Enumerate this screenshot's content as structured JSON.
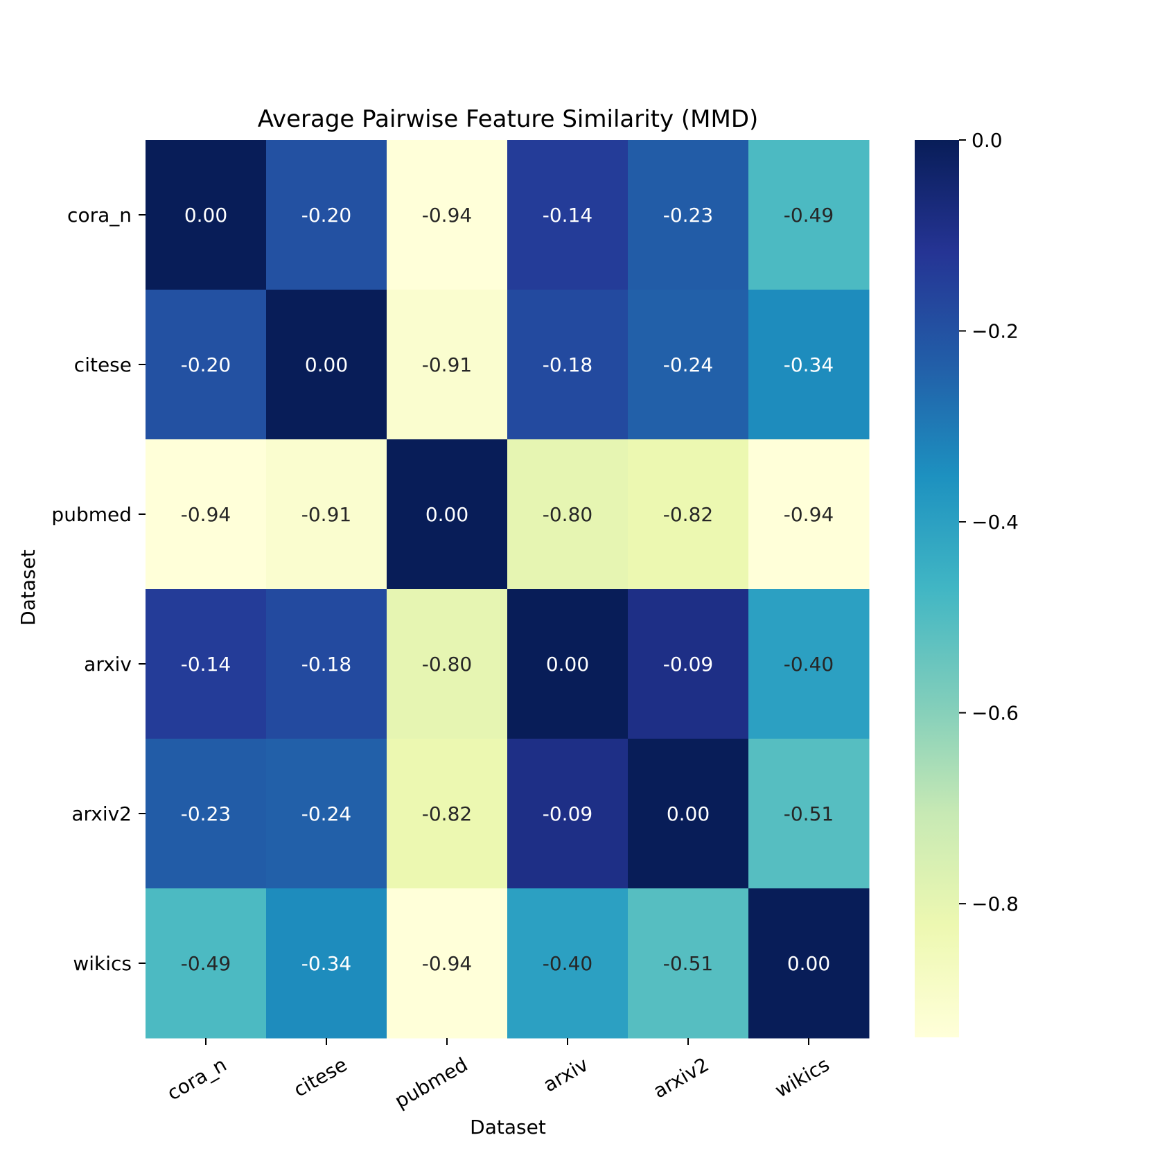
{
  "chart_data": {
    "type": "heatmap",
    "title": "Average Pairwise Feature Similarity (MMD)",
    "xlabel": "Dataset",
    "ylabel": "Dataset",
    "x_categories": [
      "cora_n",
      "citese",
      "pubmed",
      "arxiv",
      "arxiv2",
      "wikics"
    ],
    "y_categories": [
      "cora_n",
      "citese",
      "pubmed",
      "arxiv",
      "arxiv2",
      "wikics"
    ],
    "values": [
      [
        0.0,
        -0.2,
        -0.94,
        -0.14,
        -0.23,
        -0.49
      ],
      [
        -0.2,
        0.0,
        -0.91,
        -0.18,
        -0.24,
        -0.34
      ],
      [
        -0.94,
        -0.91,
        0.0,
        -0.8,
        -0.82,
        -0.94
      ],
      [
        -0.14,
        -0.18,
        -0.8,
        0.0,
        -0.09,
        -0.4
      ],
      [
        -0.23,
        -0.24,
        -0.82,
        -0.09,
        0.0,
        -0.51
      ],
      [
        -0.49,
        -0.34,
        -0.94,
        -0.4,
        -0.51,
        0.0
      ]
    ],
    "value_labels": [
      [
        "0.00",
        "-0.20",
        "-0.94",
        "-0.14",
        "-0.23",
        "-0.49"
      ],
      [
        "-0.20",
        "0.00",
        "-0.91",
        "-0.18",
        "-0.24",
        "-0.34"
      ],
      [
        "-0.94",
        "-0.91",
        "0.00",
        "-0.80",
        "-0.82",
        "-0.94"
      ],
      [
        "-0.14",
        "-0.18",
        "-0.80",
        "0.00",
        "-0.09",
        "-0.40"
      ],
      [
        "-0.23",
        "-0.24",
        "-0.82",
        "-0.09",
        "0.00",
        "-0.51"
      ],
      [
        "-0.49",
        "-0.34",
        "-0.94",
        "-0.40",
        "-0.51",
        "0.00"
      ]
    ],
    "colormap": "YlGnBu",
    "vmin": -0.94,
    "vmax": 0.0,
    "colorbar": {
      "ticks": [
        0.0,
        -0.2,
        -0.4,
        -0.6,
        -0.8
      ],
      "tick_labels": [
        "0.0",
        "−0.2",
        "−0.4",
        "−0.6",
        "−0.8"
      ]
    },
    "colors": {
      "cmap_stops": [
        "#ffffd9",
        "#edf8b1",
        "#c7e9b4",
        "#7fcdbb",
        "#41b6c4",
        "#1d91c0",
        "#225ea8",
        "#253494",
        "#081d58"
      ],
      "text_dark": "#262626",
      "text_light": "#ffffff"
    }
  }
}
